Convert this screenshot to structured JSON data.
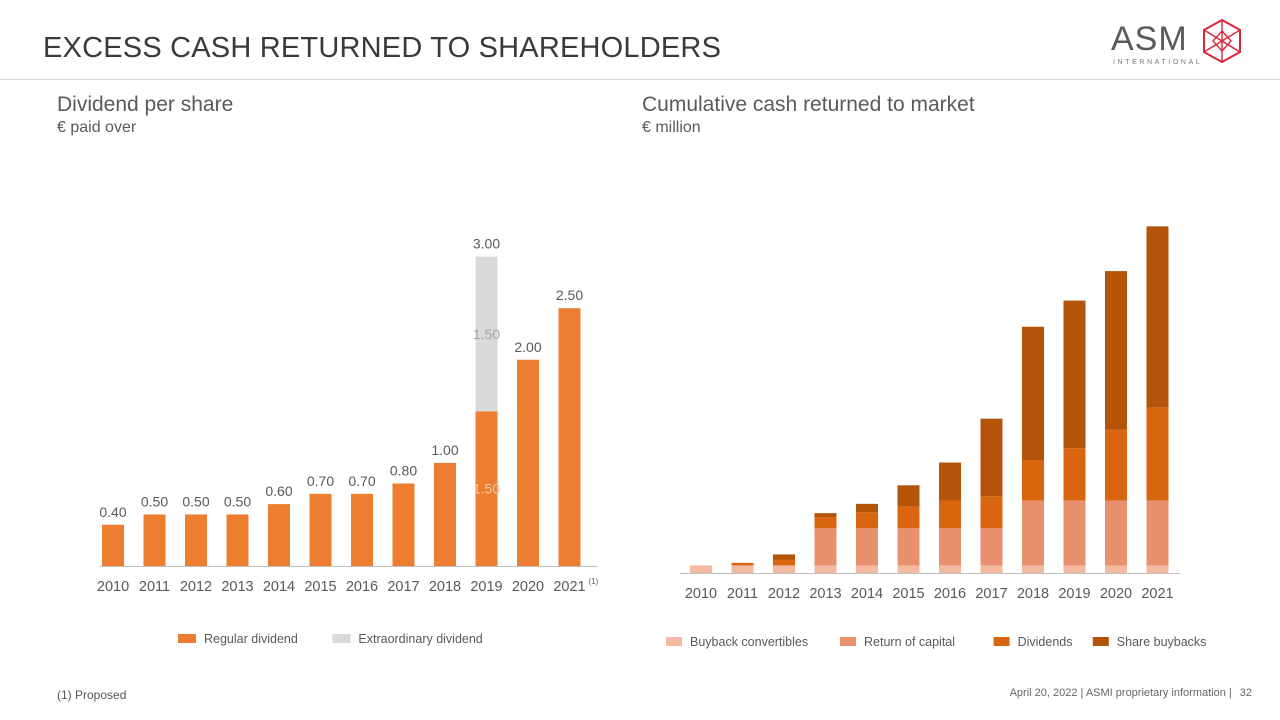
{
  "slide": {
    "title": "EXCESS CASH RETURNED TO SHAREHOLDERS",
    "logo_text": "ASM",
    "logo_subtext": "INTERNATIONAL",
    "footnote": "(1) Proposed",
    "footer_text": "April 20, 2022 | ASMI proprietary information |",
    "page_number": "32"
  },
  "left_panel": {
    "title": "Dividend per share",
    "subtitle": "€ paid over"
  },
  "right_panel": {
    "title": "Cumulative cash returned to market",
    "subtitle": "€ million"
  },
  "chart_data": [
    {
      "type": "bar",
      "stacked": true,
      "title": "Dividend per share",
      "subtitle": "€ paid over",
      "categories": [
        "2010",
        "2011",
        "2012",
        "2013",
        "2014",
        "2015",
        "2016",
        "2017",
        "2018",
        "2019",
        "2020",
        "2021"
      ],
      "category_marks": {
        "2021": "(1)"
      },
      "series": [
        {
          "name": "Regular dividend",
          "color": "#ED7D31",
          "values": [
            0.4,
            0.5,
            0.5,
            0.5,
            0.6,
            0.7,
            0.7,
            0.8,
            1.0,
            1.5,
            2.0,
            2.5
          ]
        },
        {
          "name": "Extraordinary dividend",
          "color": "#D9D9D9",
          "values": [
            0,
            0,
            0,
            0,
            0,
            0,
            0,
            0,
            0,
            1.5,
            0,
            0
          ]
        }
      ],
      "labels": [
        "0.40",
        "0.50",
        "0.50",
        "0.50",
        "0.60",
        "0.70",
        "0.70",
        "0.80",
        "1.00",
        "3.00",
        "2.00",
        "2.50"
      ],
      "segment_labels": {
        "2019": [
          "1.50",
          "1.50"
        ]
      },
      "ylim": [
        0,
        3.2
      ],
      "legend_position": "bottom",
      "grid": false
    },
    {
      "type": "bar",
      "stacked": true,
      "title": "Cumulative cash returned to market",
      "subtitle": "€ million",
      "categories": [
        "2010",
        "2011",
        "2012",
        "2013",
        "2014",
        "2015",
        "2016",
        "2017",
        "2018",
        "2019",
        "2020",
        "2021"
      ],
      "series": [
        {
          "name": "Buyback convertibles",
          "color": "#F4B9A1",
          "values": [
            9,
            9,
            9,
            9,
            9,
            9,
            9,
            9,
            9,
            9,
            9,
            9
          ]
        },
        {
          "name": "Return of capital",
          "color": "#E9906F",
          "values": [
            0,
            0,
            0,
            44,
            44,
            44,
            44,
            44,
            77,
            77,
            77,
            77
          ]
        },
        {
          "name": "Dividends",
          "color": "#D9650F",
          "values": [
            0,
            3,
            7,
            13,
            19,
            26,
            33,
            38,
            48,
            62,
            84,
            110
          ]
        },
        {
          "name": "Share buybacks",
          "color": "#B4540A",
          "values": [
            0,
            0,
            6,
            5,
            10,
            25,
            45,
            92,
            158,
            175,
            188,
            215
          ]
        }
      ],
      "ylim": [
        0,
        420
      ],
      "legend_position": "bottom",
      "grid": false
    }
  ]
}
